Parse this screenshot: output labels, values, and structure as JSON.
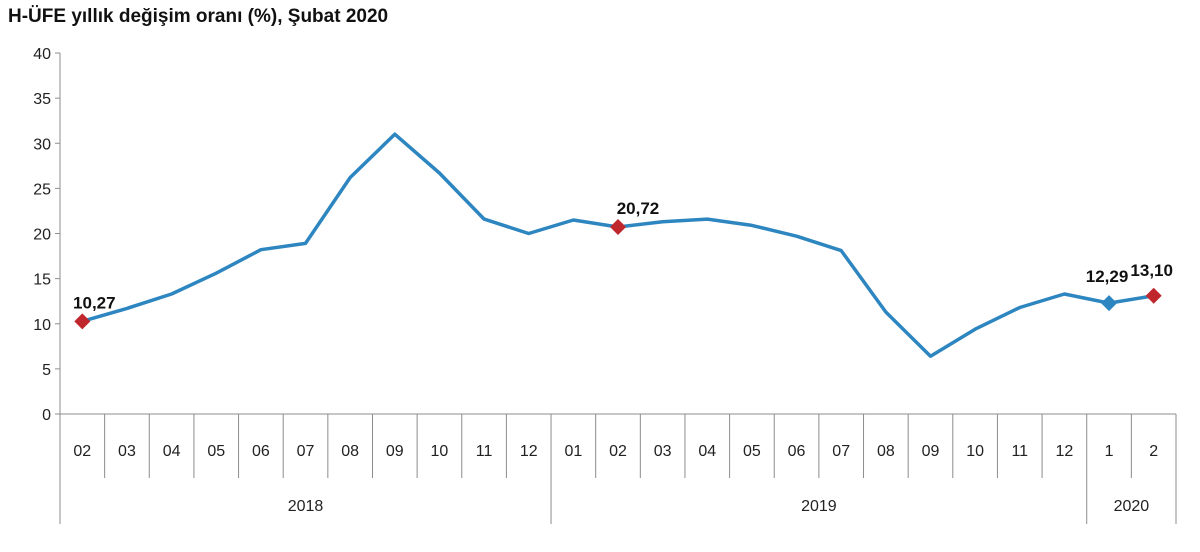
{
  "chart_data": {
    "type": "line",
    "title": "H-ÜFE yıllık değişim oranı (%), Şubat 2020",
    "xlabel": "",
    "ylabel": "",
    "ylim": [
      0,
      40
    ],
    "yticks": [
      "0",
      "5",
      "10",
      "15",
      "20",
      "25",
      "30",
      "35",
      "40"
    ],
    "grid": false,
    "legend": "none",
    "categories": [
      "02",
      "03",
      "04",
      "05",
      "06",
      "07",
      "08",
      "09",
      "10",
      "11",
      "12",
      "01",
      "02",
      "03",
      "04",
      "05",
      "06",
      "07",
      "08",
      "09",
      "10",
      "11",
      "12",
      "1",
      "2"
    ],
    "year_groups": [
      {
        "label": "2018",
        "count": 11
      },
      {
        "label": "2019",
        "count": 12
      },
      {
        "label": "2020",
        "count": 2
      }
    ],
    "series": [
      {
        "color": "#2e86c1",
        "values": [
          10.27,
          11.7,
          13.3,
          15.6,
          18.2,
          18.9,
          26.2,
          31.0,
          26.7,
          21.6,
          20.0,
          21.5,
          20.72,
          21.3,
          21.6,
          20.9,
          19.7,
          18.1,
          11.3,
          6.4,
          9.4,
          11.8,
          13.3,
          12.29,
          13.1
        ]
      }
    ],
    "markers": [
      {
        "index": 0,
        "label": "10,27",
        "color": "#c0272d",
        "shape": "diamond"
      },
      {
        "index": 12,
        "label": "20,72",
        "color": "#c0272d",
        "shape": "diamond"
      },
      {
        "index": 23,
        "label": "12,29",
        "color": "#2e86c1",
        "shape": "diamond"
      },
      {
        "index": 24,
        "label": "13,10",
        "color": "#c0272d",
        "shape": "diamond"
      }
    ]
  }
}
